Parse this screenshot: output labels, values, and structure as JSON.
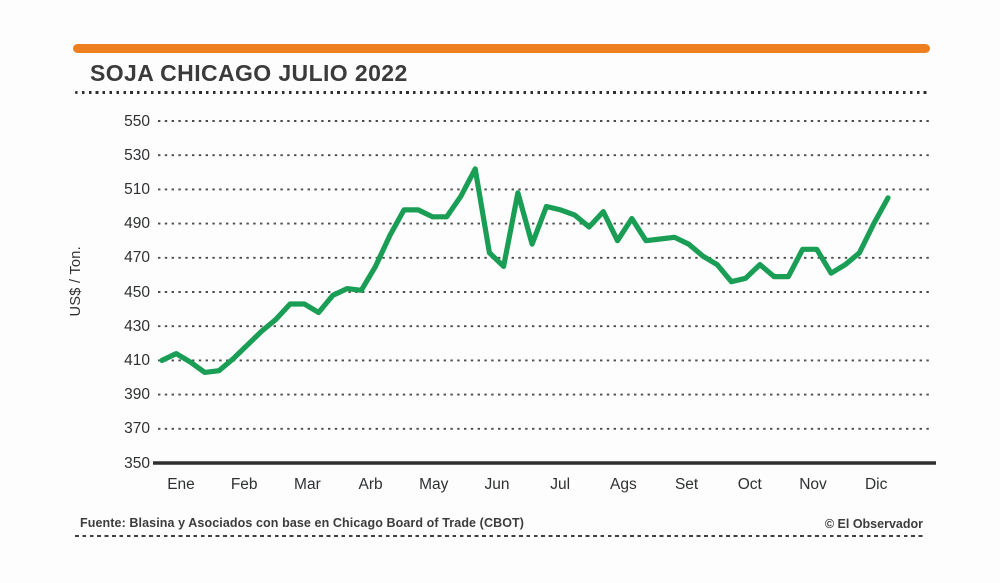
{
  "header": {
    "title": "SOJA CHICAGO JULIO 2022",
    "accent_color": "#ef801f"
  },
  "chart_data": {
    "type": "line",
    "title": "SOJA CHICAGO JULIO 2022",
    "ylabel": "US$ / Ton.",
    "ylim": [
      350,
      550
    ],
    "yticks": [
      550,
      530,
      510,
      490,
      470,
      450,
      430,
      410,
      390,
      370,
      350
    ],
    "categories": [
      "Ene",
      "Feb",
      "Mar",
      "Arb",
      "May",
      "Jun",
      "Jul",
      "Ags",
      "Set",
      "Oct",
      "Nov",
      "Dic"
    ],
    "grid": "dotted-horizontal",
    "legend": "none",
    "line_color": "#1a9e55",
    "axis_color": "#2f2f2f",
    "series": [
      {
        "name": "Soja Chicago Julio 2022 (US$/Ton.)",
        "sampling": "weekly",
        "values": [
          410,
          414,
          409,
          403,
          404,
          411,
          419,
          427,
          434,
          443,
          443,
          438,
          448,
          452,
          451,
          465,
          483,
          498,
          498,
          494,
          494,
          506,
          522,
          473,
          465,
          508,
          478,
          500,
          498,
          495,
          488,
          497,
          480,
          493,
          480,
          481,
          482,
          478,
          471,
          466,
          456,
          458,
          466,
          459,
          459,
          475,
          475,
          461,
          466,
          473,
          490,
          505
        ]
      }
    ]
  },
  "footer": {
    "source": "Fuente: Blasina y Asociados con base en Chicago Board of Trade (CBOT)",
    "credit": "© El Observador"
  }
}
